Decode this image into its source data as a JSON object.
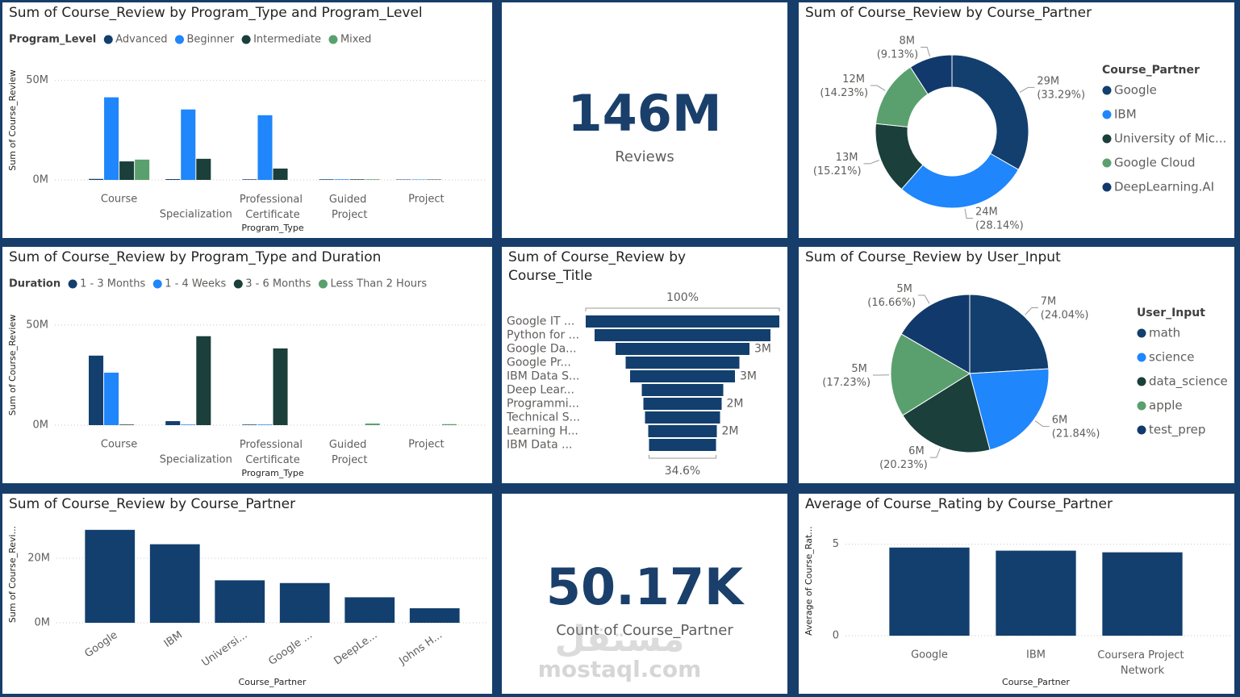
{
  "watermark": {
    "logo": "مستقل",
    "text": "mostaql.com"
  },
  "chart_data": [
    {
      "type": "bar",
      "title": "Sum of Course_Review by Program_Type and Program_Level",
      "legend_title": "Program_Level",
      "x_label": "Program_Type",
      "y_label": "Sum of Course_Review",
      "categories": [
        "Course",
        "Specialization",
        "Professional Certificate",
        "Guided Project",
        "Project"
      ],
      "series": [
        {
          "name": "Advanced",
          "color": "#123f6e",
          "values": [
            500000,
            400000,
            300000,
            300000,
            200000
          ]
        },
        {
          "name": "Beginner",
          "color": "#1f86fb",
          "values": [
            41500000,
            35400000,
            32500000,
            300000,
            200000
          ]
        },
        {
          "name": "Intermediate",
          "color": "#1b3f3b",
          "values": [
            9300000,
            10600000,
            5700000,
            300000,
            200000
          ]
        },
        {
          "name": "Mixed",
          "color": "#5aa06e",
          "values": [
            10200000,
            0,
            0,
            300000,
            0
          ]
        }
      ],
      "ylim": [
        0,
        60000000
      ],
      "yticks": [
        {
          "value": 0,
          "label": "0M"
        },
        {
          "value": 50000000,
          "label": "50M"
        }
      ],
      "grid": true
    },
    {
      "type": "card",
      "values": [
        146000000
      ],
      "value_labels": [
        "146M"
      ],
      "label": "Reviews"
    },
    {
      "type": "donut",
      "title": "Sum of Course_Review by Course_Partner",
      "legend_title": "Course_Partner",
      "categories": [
        "Google",
        "IBM",
        "University of Mic...",
        "Google Cloud",
        "DeepLearning.AI"
      ],
      "values": [
        28800000,
        24340000,
        13160000,
        12310000,
        7900000
      ],
      "value_labels": [
        "29M (33.29%)",
        "24M (28.14%)",
        "13M (15.21%)",
        "12M (14.23%)",
        "8M (9.13%)"
      ],
      "colors": [
        "#123f6e",
        "#1f86fb",
        "#1b3f3b",
        "#5aa06e",
        "#12396b"
      ]
    },
    {
      "type": "bar",
      "title": "Sum of Course_Review by Program_Type and Duration",
      "legend_title": "Duration",
      "x_label": "Program_Type",
      "y_label": "Sum of Course_Review",
      "categories": [
        "Course",
        "Specialization",
        "Professional Certificate",
        "Guided Project",
        "Project"
      ],
      "series": [
        {
          "name": "1 - 3 Months",
          "color": "#123f6e",
          "values": [
            34700000,
            2000000,
            300000,
            0,
            0
          ]
        },
        {
          "name": "1 - 4 Weeks",
          "color": "#1f86fb",
          "values": [
            26200000,
            300000,
            300000,
            0,
            0
          ]
        },
        {
          "name": "3 - 6 Months",
          "color": "#1b3f3b",
          "values": [
            300000,
            44400000,
            38300000,
            0,
            0
          ]
        },
        {
          "name": "Less Than 2 Hours",
          "color": "#5aa06e",
          "values": [
            0,
            0,
            0,
            800000,
            500000
          ]
        }
      ],
      "ylim": [
        0,
        60000000
      ],
      "yticks": [
        {
          "value": 0,
          "label": "0M"
        },
        {
          "value": 50000000,
          "label": "50M"
        }
      ],
      "grid": true
    },
    {
      "type": "funnel",
      "title": "Sum of Course_Review by Course_Title",
      "color": "#123f6e",
      "categories": [
        "Google IT ...",
        "Python for ...",
        "Google Da...",
        "Google Pr...",
        "IBM Data S...",
        "Deep Lear...",
        "Programmi...",
        "Technical S...",
        "Learning H...",
        "IBM Data ..."
      ],
      "values": [
        4800000,
        4360000,
        3320000,
        2820000,
        2600000,
        2020000,
        1940000,
        1860000,
        1700000,
        1661000
      ],
      "value_labels": [
        null,
        null,
        "3M",
        null,
        "3M",
        null,
        "2M",
        null,
        "2M",
        null
      ],
      "top_label": "100%",
      "bottom_label": "34.6%"
    },
    {
      "type": "pie",
      "title": "Sum of Course_Review by User_Input",
      "legend_title": "User_Input",
      "categories": [
        "math",
        "science",
        "data_science",
        "apple",
        "test_prep"
      ],
      "values": [
        6731000,
        6115000,
        5664000,
        4824000,
        4665000
      ],
      "value_labels": [
        "7M (24.04%)",
        "6M (21.84%)",
        "6M (20.23%)",
        "5M (17.23%)",
        "5M (16.66%)"
      ],
      "colors": [
        "#123f6e",
        "#1f86fb",
        "#1b3f3b",
        "#5aa06e",
        "#12396b"
      ]
    },
    {
      "type": "bar",
      "title": "Sum of Course_Review by Course_Partner",
      "x_label": "Course_Partner",
      "y_label": "Sum of Course_Revi...",
      "categories": [
        "Google",
        "IBM",
        "Universi...",
        "Google ...",
        "DeepLe...",
        "Johns H..."
      ],
      "values": [
        28800000,
        24340000,
        13160000,
        12310000,
        7900000,
        4500000
      ],
      "color": "#123f6e",
      "ylim": [
        0,
        30000000
      ],
      "yticks": [
        {
          "value": 0,
          "label": "0M"
        },
        {
          "value": 20000000,
          "label": "20M"
        }
      ],
      "grid": true
    },
    {
      "type": "card",
      "values": [
        50170
      ],
      "value_labels": [
        "50.17K"
      ],
      "label": "Count of Course_Partner"
    },
    {
      "type": "bar",
      "title": "Average of Course_Rating by Course_Partner",
      "x_label": "Course_Partner",
      "y_label": "Average of Course_Rat...",
      "categories": [
        "Google",
        "IBM",
        "Coursera Project Network"
      ],
      "values": [
        4.82,
        4.65,
        4.56
      ],
      "color": "#123f6e",
      "ylim": [
        0,
        6
      ],
      "yticks": [
        0,
        5
      ],
      "grid": true
    }
  ]
}
